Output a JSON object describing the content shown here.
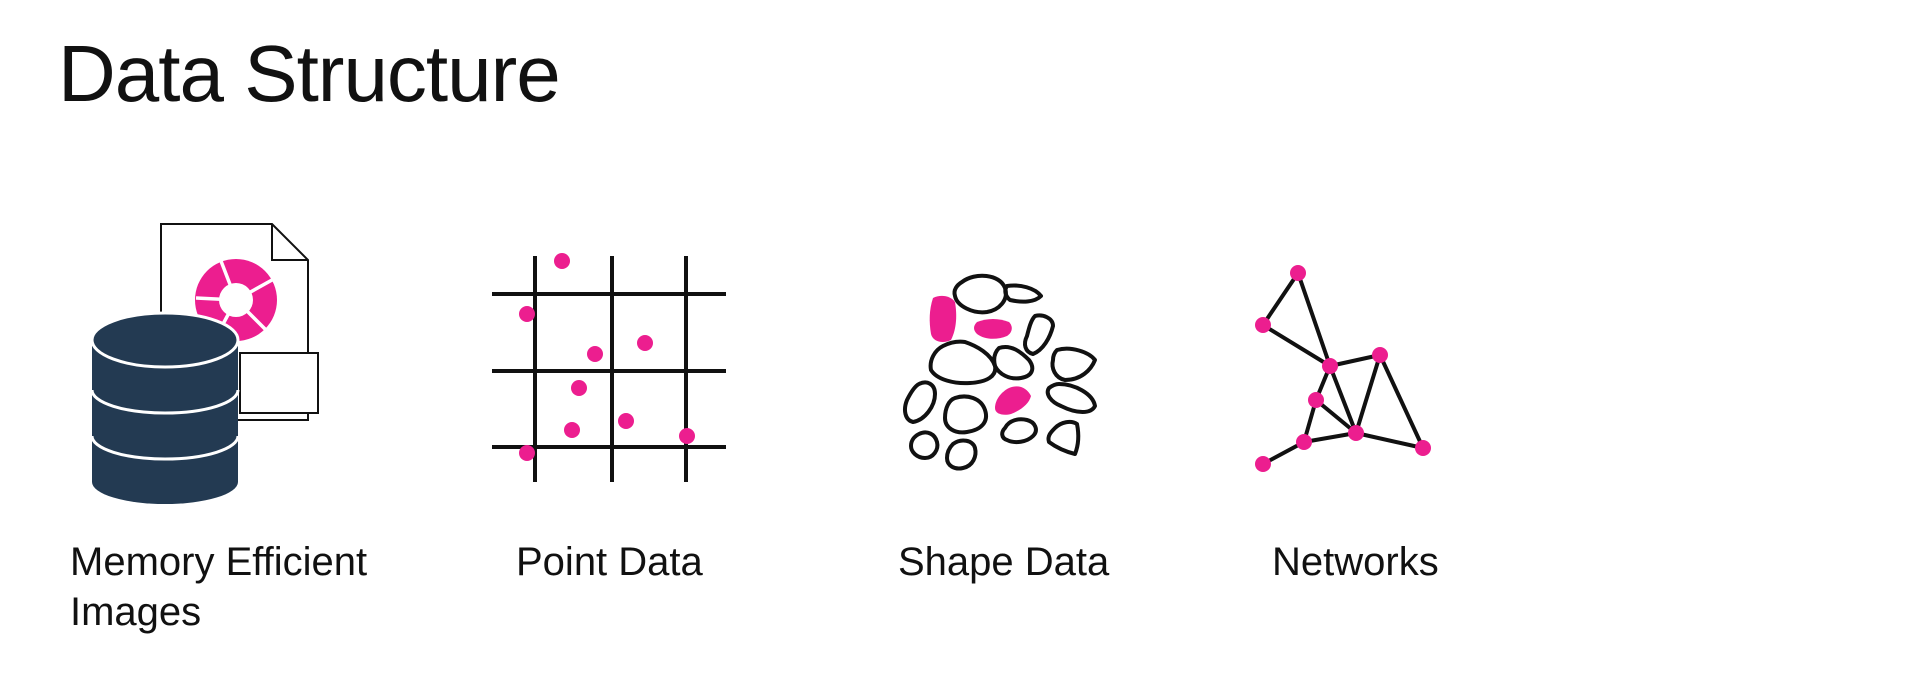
{
  "title": "Data Structure",
  "colors": {
    "accent": "#ec1e8f",
    "navy": "#233a52",
    "ink": "#111111",
    "background": "#ffffff"
  },
  "items": [
    {
      "id": "memory-efficient-images",
      "label_lines": [
        "Memory Efficient",
        "Images"
      ],
      "icon": "database-with-image-file-icon"
    },
    {
      "id": "point-data",
      "label_lines": [
        "Point Data"
      ],
      "icon": "grid-with-points-icon"
    },
    {
      "id": "shape-data",
      "label_lines": [
        "Shape Data"
      ],
      "icon": "polygons-icon"
    },
    {
      "id": "networks",
      "label_lines": [
        "Networks"
      ],
      "icon": "network-graph-icon"
    }
  ]
}
